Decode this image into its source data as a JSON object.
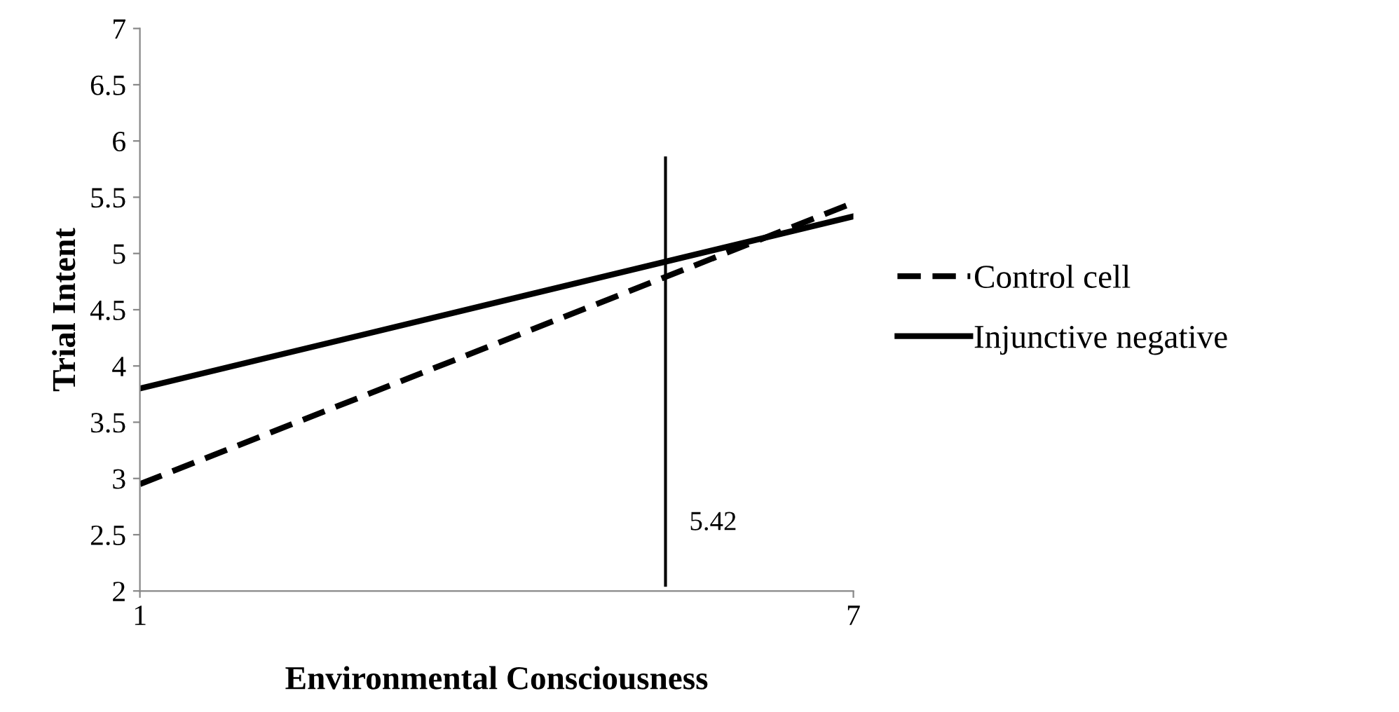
{
  "chart_data": {
    "type": "line",
    "xlabel": "Environmental Consciousness",
    "ylabel": "Trial Intent",
    "x": [
      1,
      7
    ],
    "series": [
      {
        "name": "Control cell",
        "color": "#000000",
        "values": [
          2.95,
          5.45
        ],
        "line_style": "dashed"
      },
      {
        "name": "Injunctive negative",
        "color": "#000000",
        "values": [
          3.8,
          5.33
        ],
        "line_style": "solid"
      }
    ],
    "xlim": [
      1,
      7
    ],
    "xticks": [
      1,
      7
    ],
    "ylim": [
      2,
      7
    ],
    "yticks": [
      2,
      2.5,
      3,
      3.5,
      4,
      4.5,
      5,
      5.5,
      6,
      6.5,
      7
    ],
    "ref_lines": [
      {
        "axis": "x",
        "value": 5.42,
        "label": "5.42",
        "color": "#000000"
      }
    ],
    "grid": false,
    "legend": "right",
    "marker": "none"
  }
}
